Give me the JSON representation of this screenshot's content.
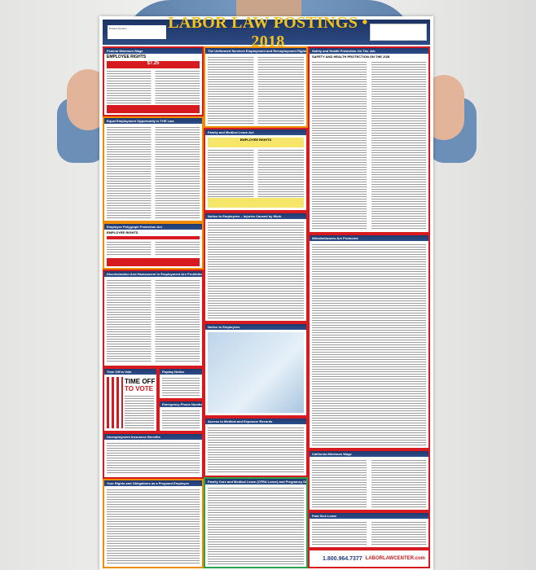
{
  "poster": {
    "title": "LABOR LAW POSTINGS • 2018",
    "product_label": "Product Number",
    "sections": {
      "federal_min_wage": "Federal Minimum Wage",
      "federal_min_wage_sub": "EMPLOYEE RIGHTS",
      "federal_min_wage_rate": "$7.25",
      "eeo": "Equal Employment Opportunity Is THE Law",
      "polygraph": "Employee Polygraph Protection Act",
      "polygraph_sub": "EMPLOYEE RIGHTS",
      "discrimination": "Discrimination And Harassment In Employment Are Prohibited By Law",
      "time_off_vote_header": "Time Off to Vote",
      "time_off_vote_l1": "TIME OFF",
      "time_off_vote_l2": "TO VOTE",
      "posting_notice": "Payday Notice",
      "emergency": "Emergency Phone Numbers",
      "unemployment": "Unemployment Insurance Benefits",
      "pregnant": "Your Rights and Obligations as a Pregnant Employee",
      "userra": "The Uniformed Services Employment and Reemployment Rights Act",
      "fmla": "Family and Medical Leave Act",
      "fmla_sub": "EMPLOYEE RIGHTS",
      "injuries": "Notice to Employees – Injuries Caused by Work",
      "notice_employees": "Notice to Employees",
      "medical_records": "Access to Medical and Exposure Records",
      "cfra": "Family Care and Medical Leave (CFRA Leave) and Pregnancy Disability Leave",
      "osha": "Safety and Health Protection On The Job",
      "osha_sub": "SAFETY AND HEALTH PROTECTION ON THE JOB",
      "whistleblower": "Whistleblowers Are Protected",
      "ca_min_wage": "California Minimum Wage",
      "paid_sick": "Paid Sick Leave"
    },
    "footer": {
      "phone": "1.800.964.7377",
      "logo": "LABORLAWCENTER.com"
    }
  },
  "colors": {
    "header_bg": "#1f3a6e",
    "title": "#f3c21b",
    "border": "#d71920",
    "accent_orange": "#f08c00"
  }
}
